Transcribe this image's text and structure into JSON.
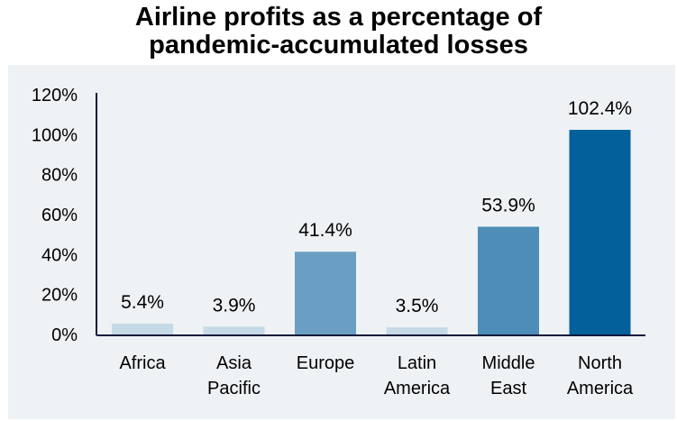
{
  "chart_data": {
    "type": "bar",
    "title_lines": [
      "Airline profits as a percentage of",
      "pandemic-accumulated losses"
    ],
    "categories": [
      [
        "Africa"
      ],
      [
        "Asia",
        "Pacific"
      ],
      [
        "Europe"
      ],
      [
        "Latin",
        "America"
      ],
      [
        "Middle",
        "East"
      ],
      [
        "North",
        "America"
      ]
    ],
    "values": [
      5.4,
      3.9,
      41.4,
      3.5,
      53.9,
      102.4
    ],
    "data_labels": [
      "5.4%",
      "3.9%",
      "41.4%",
      "3.5%",
      "53.9%",
      "102.4%"
    ],
    "bar_colors": [
      "#c5d9e6",
      "#c5d9e6",
      "#6a9fc3",
      "#c5d9e6",
      "#4d8db8",
      "#03609a"
    ],
    "yticks": [
      "0%",
      "20%",
      "40%",
      "60%",
      "80%",
      "100%",
      "120%"
    ],
    "ylim": [
      0,
      120
    ],
    "xlabel": "",
    "ylabel": "",
    "grid": false,
    "background_color": "#eef2f5"
  }
}
